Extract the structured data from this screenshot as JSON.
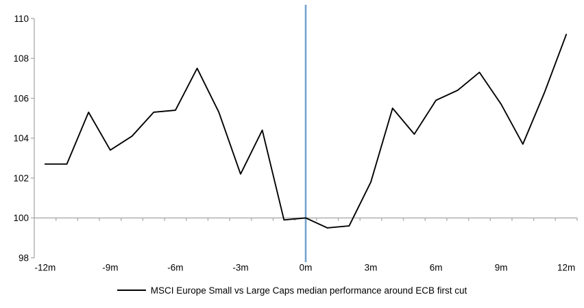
{
  "chart_data": {
    "type": "line",
    "title": "",
    "xlabel": "",
    "ylabel": "",
    "legend": "MSCI Europe Small vs Large Caps median performance around ECB first cut",
    "legend_position": "bottom-center",
    "grid": false,
    "xlim": [
      -12,
      12
    ],
    "ylim": [
      98,
      110
    ],
    "y_ticks": [
      98,
      100,
      102,
      104,
      106,
      108,
      110
    ],
    "x_tick_positions": [
      -12,
      -9,
      -6,
      -3,
      0,
      3,
      6,
      9,
      12
    ],
    "x_tick_labels": [
      "-12m",
      "-9m",
      "-6m",
      "-3m",
      "0m",
      "3m",
      "6m",
      "9m",
      "12m"
    ],
    "baseline_value": 100,
    "event_line_x": 0,
    "series": [
      {
        "name": "MSCI Europe Small vs Large Caps median performance around ECB first cut",
        "color": "#000000",
        "x": [
          -12,
          -11,
          -10,
          -9,
          -8,
          -7,
          -6,
          -5,
          -4,
          -3,
          -2,
          -1,
          0,
          1,
          2,
          3,
          4,
          5,
          6,
          7,
          8,
          9,
          10,
          11,
          12
        ],
        "values": [
          102.7,
          102.7,
          105.3,
          103.4,
          104.1,
          105.3,
          105.4,
          107.5,
          105.3,
          102.2,
          104.4,
          99.9,
          100.0,
          99.5,
          99.6,
          101.8,
          105.5,
          104.2,
          105.9,
          106.4,
          107.3,
          105.7,
          103.7,
          106.3,
          109.2
        ]
      }
    ],
    "colors": {
      "series_line": "#000000",
      "event_line": "#75A3CF",
      "axis": "#A9A9A9",
      "text": "#000000",
      "background": "#FFFFFF"
    }
  }
}
